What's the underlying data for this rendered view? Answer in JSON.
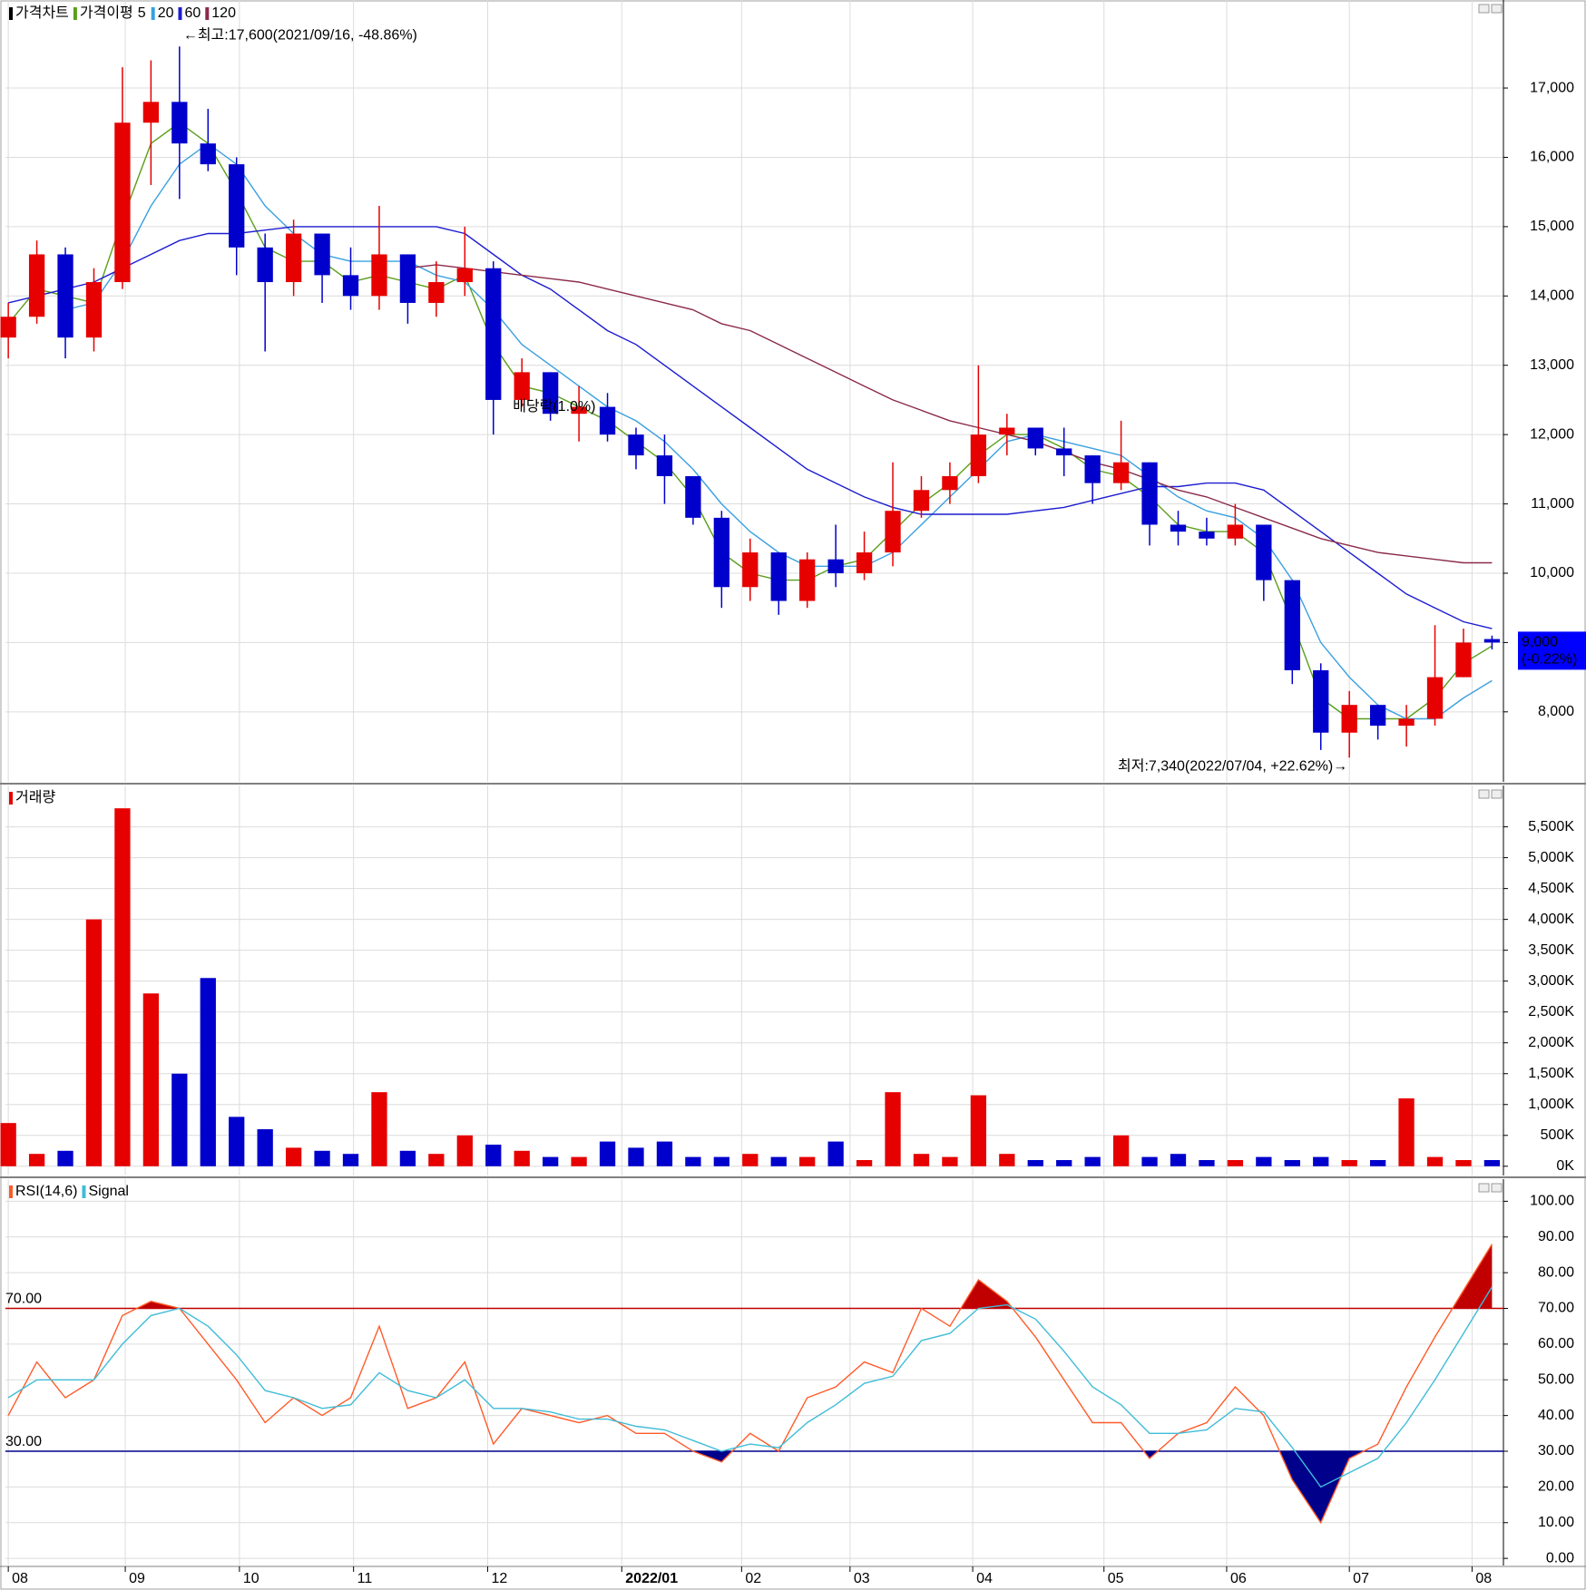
{
  "chart_data": [
    {
      "type": "candlestick",
      "title": "가격차트",
      "ma_label": "가격이평",
      "x": [
        0,
        1,
        2,
        3,
        4,
        5,
        6,
        7,
        8,
        9,
        10,
        11,
        12,
        13,
        14,
        15,
        16,
        17,
        18,
        19,
        20,
        21,
        22,
        23,
        24,
        25,
        26,
        27,
        28,
        29,
        30,
        31,
        32,
        33,
        34,
        35,
        36,
        37,
        38,
        39,
        40,
        41,
        42,
        43,
        44,
        45,
        46,
        47,
        48,
        49,
        50,
        51,
        52
      ],
      "open": [
        13400,
        13700,
        14600,
        13400,
        14200,
        16500,
        16800,
        16200,
        15900,
        14700,
        14200,
        14900,
        14300,
        14000,
        14600,
        13900,
        14200,
        14400,
        12500,
        12900,
        12300,
        12400,
        12000,
        11700,
        11400,
        10800,
        9800,
        10300,
        9600,
        10200,
        10000,
        10300,
        10900,
        11200,
        11400,
        12000,
        12100,
        11800,
        11700,
        11300,
        11600,
        10700,
        10600,
        10500,
        10700,
        9900,
        8600,
        7700,
        8100,
        7800,
        7900,
        8500,
        9050
      ],
      "high": [
        13900,
        14800,
        14700,
        14400,
        17300,
        17400,
        17600,
        16700,
        16000,
        14900,
        15100,
        14900,
        14700,
        15300,
        14600,
        14500,
        15000,
        14500,
        13100,
        12900,
        12700,
        12600,
        12100,
        12000,
        11400,
        10900,
        10500,
        10300,
        10300,
        10700,
        10600,
        11600,
        11400,
        11600,
        13000,
        12300,
        12100,
        12100,
        11700,
        12200,
        11600,
        10900,
        10800,
        11000,
        10700,
        9900,
        8700,
        8300,
        8100,
        8100,
        9250,
        9200,
        9100
      ],
      "low": [
        13100,
        13600,
        13100,
        13200,
        14100,
        15600,
        15400,
        15800,
        14300,
        13200,
        14000,
        13900,
        13800,
        13800,
        13600,
        13700,
        14000,
        12000,
        12400,
        12200,
        11900,
        11900,
        11500,
        11000,
        10700,
        9500,
        9600,
        9400,
        9500,
        9800,
        9900,
        10100,
        10800,
        11000,
        11300,
        11700,
        11700,
        11400,
        11000,
        11200,
        10400,
        10400,
        10400,
        10400,
        9600,
        8400,
        7450,
        7340,
        7600,
        7500,
        7800,
        8500,
        8900
      ],
      "close": [
        13700,
        14600,
        13400,
        14200,
        16500,
        16800,
        16200,
        15900,
        14700,
        14200,
        14900,
        14300,
        14000,
        14600,
        13900,
        14200,
        14400,
        12500,
        12900,
        12300,
        12400,
        12000,
        11700,
        11400,
        10800,
        9800,
        10300,
        9600,
        10200,
        10000,
        10300,
        10900,
        11200,
        11400,
        12000,
        12100,
        11800,
        11700,
        11300,
        11600,
        10700,
        10600,
        10500,
        10700,
        9900,
        8600,
        7700,
        8100,
        7800,
        7900,
        8500,
        9000,
        9000
      ],
      "up_color": "#e60000",
      "down_color": "#0000cc",
      "series": [
        {
          "name": "5",
          "color": "#5a9e1a",
          "values": [
            13600,
            14100,
            14000,
            13900,
            15100,
            16200,
            16500,
            16200,
            15500,
            14700,
            14500,
            14500,
            14200,
            14300,
            14200,
            14100,
            14300,
            13300,
            12700,
            12600,
            12400,
            12200,
            11900,
            11600,
            11100,
            10300,
            10000,
            9900,
            9900,
            10100,
            10200,
            10600,
            11000,
            11300,
            11700,
            12000,
            12000,
            11800,
            11500,
            11400,
            11100,
            10700,
            10600,
            10600,
            10300,
            9300,
            8200,
            7900,
            7900,
            7900,
            8200,
            8700,
            8950
          ]
        },
        {
          "name": "20",
          "color": "#3aa0e0",
          "values": [
            null,
            null,
            13800,
            13900,
            14500,
            15300,
            15900,
            16200,
            15900,
            15300,
            14900,
            14600,
            14500,
            14500,
            14500,
            14300,
            14200,
            13800,
            13300,
            13000,
            12700,
            12400,
            12200,
            11900,
            11500,
            11000,
            10600,
            10300,
            10100,
            10100,
            10100,
            10300,
            10700,
            11100,
            11500,
            11900,
            12000,
            11900,
            11800,
            11700,
            11400,
            11100,
            10900,
            10800,
            10500,
            9900,
            9000,
            8500,
            8100,
            7900,
            7900,
            8200,
            8450
          ]
        },
        {
          "name": "60",
          "color": "#1c1cd0",
          "values": [
            13900,
            14000,
            14100,
            14200,
            14400,
            14600,
            14800,
            14900,
            14900,
            14950,
            15000,
            15000,
            15000,
            15000,
            15000,
            15000,
            14900,
            14600,
            14300,
            14100,
            13800,
            13500,
            13300,
            13000,
            12700,
            12400,
            12100,
            11800,
            11500,
            11300,
            11100,
            10950,
            10850,
            10850,
            10850,
            10850,
            10900,
            10950,
            11050,
            11150,
            11250,
            11250,
            11300,
            11300,
            11200,
            10900,
            10600,
            10300,
            10000,
            9700,
            9500,
            9300,
            9200
          ]
        },
        {
          "name": "120",
          "color": "#8b2a4a",
          "values": [
            null,
            null,
            null,
            null,
            null,
            null,
            null,
            null,
            null,
            null,
            null,
            null,
            null,
            null,
            14400,
            14450,
            14400,
            14350,
            14300,
            14250,
            14200,
            14100,
            14000,
            13900,
            13800,
            13600,
            13500,
            13300,
            13100,
            12900,
            12700,
            12500,
            12350,
            12200,
            12100,
            12000,
            11900,
            11750,
            11600,
            11500,
            11350,
            11200,
            11100,
            10950,
            10800,
            10650,
            10500,
            10400,
            10300,
            10250,
            10200,
            10150,
            10150
          ]
        }
      ],
      "high_label": "←최고:17,600(2021/09/16, -48.86%)",
      "low_label": "최저:7,340(2022/07/04, +22.62%)→",
      "events": [
        {
          "x": 18,
          "label": "배당락(1.0%)"
        }
      ],
      "last_label": "9,000",
      "last_change": "(-0.22%)",
      "last_color": "#0000ff",
      "ylim": [
        6990,
        18270
      ],
      "yticks": [
        {
          "value": 8000,
          "label": "8,000"
        },
        {
          "value": 9000,
          "label": "9,000"
        },
        {
          "value": 10000,
          "label": "10,000"
        },
        {
          "value": 11000,
          "label": "11,000"
        },
        {
          "value": 12000,
          "label": "12,000"
        },
        {
          "value": 13000,
          "label": "13,000"
        },
        {
          "value": 14000,
          "label": "14,000"
        },
        {
          "value": 15000,
          "label": "15,000"
        },
        {
          "value": 16000,
          "label": "16,000"
        },
        {
          "value": 17000,
          "label": "17,000"
        }
      ],
      "grid": true
    },
    {
      "type": "bar",
      "title": "거래량",
      "color": "#e60000",
      "values": [
        700,
        200,
        250,
        4000,
        5800,
        2800,
        1500,
        3050,
        800,
        600,
        300,
        250,
        200,
        1200,
        250,
        200,
        500,
        350,
        250,
        150,
        150,
        400,
        300,
        400,
        150,
        150,
        200,
        150,
        150,
        400,
        100,
        1200,
        200,
        150,
        1150,
        200,
        100,
        100,
        150,
        500,
        150,
        200,
        100,
        100,
        150,
        100,
        150,
        100,
        100,
        1100,
        150,
        100,
        100
      ],
      "up_color": "#e60000",
      "down_color": "#0000cc",
      "ylim": [
        -150,
        6170
      ],
      "yticks": [
        {
          "value": 0,
          "label": "0K"
        },
        {
          "value": 500,
          "label": "500K"
        },
        {
          "value": 1000,
          "label": "1,000K"
        },
        {
          "value": 1500,
          "label": "1,500K"
        },
        {
          "value": 2000,
          "label": "2,000K"
        },
        {
          "value": 2500,
          "label": "2,500K"
        },
        {
          "value": 3000,
          "label": "3,000K"
        },
        {
          "value": 3500,
          "label": "3,500K"
        },
        {
          "value": 4000,
          "label": "4,000K"
        },
        {
          "value": 4500,
          "label": "4,500K"
        },
        {
          "value": 5000,
          "label": "5,000K"
        },
        {
          "value": 5500,
          "label": "5,500K"
        }
      ],
      "grid": true
    },
    {
      "type": "line",
      "series": [
        {
          "name": "RSI(14,6)",
          "color": "#ff5a28",
          "values": [
            40,
            55,
            45,
            50,
            68,
            72,
            70,
            60,
            50,
            38,
            45,
            40,
            45,
            65,
            42,
            45,
            55,
            32,
            42,
            40,
            38,
            40,
            35,
            35,
            30,
            27,
            35,
            30,
            45,
            48,
            55,
            52,
            70,
            65,
            78,
            72,
            62,
            50,
            38,
            38,
            28,
            35,
            38,
            48,
            40,
            22,
            10,
            28,
            32,
            48,
            62,
            75,
            88
          ]
        },
        {
          "name": "Signal",
          "color": "#40bcd8",
          "values": [
            45,
            50,
            50,
            50,
            60,
            68,
            70,
            65,
            57,
            47,
            45,
            42,
            43,
            52,
            47,
            45,
            50,
            42,
            42,
            41,
            39,
            39,
            37,
            36,
            33,
            30,
            32,
            31,
            38,
            43,
            49,
            51,
            61,
            63,
            70,
            71,
            67,
            58,
            48,
            43,
            35,
            35,
            36,
            42,
            41,
            31,
            20,
            24,
            28,
            38,
            50,
            63,
            76
          ]
        }
      ],
      "reference_lines": [
        {
          "value": 70,
          "label": "70.00",
          "color": "#c00000",
          "side": "above"
        },
        {
          "value": 30,
          "label": "30.00",
          "color": "#00008b",
          "side": "below"
        }
      ],
      "ylim": [
        -2,
        106.2
      ],
      "yticks": [
        {
          "value": 0,
          "label": "0.00"
        },
        {
          "value": 10,
          "label": "10.00"
        },
        {
          "value": 20,
          "label": "20.00"
        },
        {
          "value": 30,
          "label": "30.00"
        },
        {
          "value": 40,
          "label": "40.00"
        },
        {
          "value": 50,
          "label": "50.00"
        },
        {
          "value": 60,
          "label": "60.00"
        },
        {
          "value": 70,
          "label": "70.00"
        },
        {
          "value": 80,
          "label": "80.00"
        },
        {
          "value": 90,
          "label": "90.00"
        },
        {
          "value": 100,
          "label": "100.00"
        }
      ],
      "xlim": [
        -0.1,
        52.4
      ],
      "xticks": [
        {
          "value": 0,
          "label": "08"
        },
        {
          "value": 4.1,
          "label": "09"
        },
        {
          "value": 8.1,
          "label": "10"
        },
        {
          "value": 12.1,
          "label": "11"
        },
        {
          "value": 16.8,
          "label": "12"
        },
        {
          "value": 21.5,
          "label": "2022/01"
        },
        {
          "value": 25.7,
          "label": "02"
        },
        {
          "value": 29.5,
          "label": "03"
        },
        {
          "value": 33.8,
          "label": "04"
        },
        {
          "value": 38.4,
          "label": "05"
        },
        {
          "value": 42.7,
          "label": "06"
        },
        {
          "value": 47,
          "label": "07"
        },
        {
          "value": 51.3,
          "label": "08"
        }
      ],
      "grid": true
    }
  ]
}
